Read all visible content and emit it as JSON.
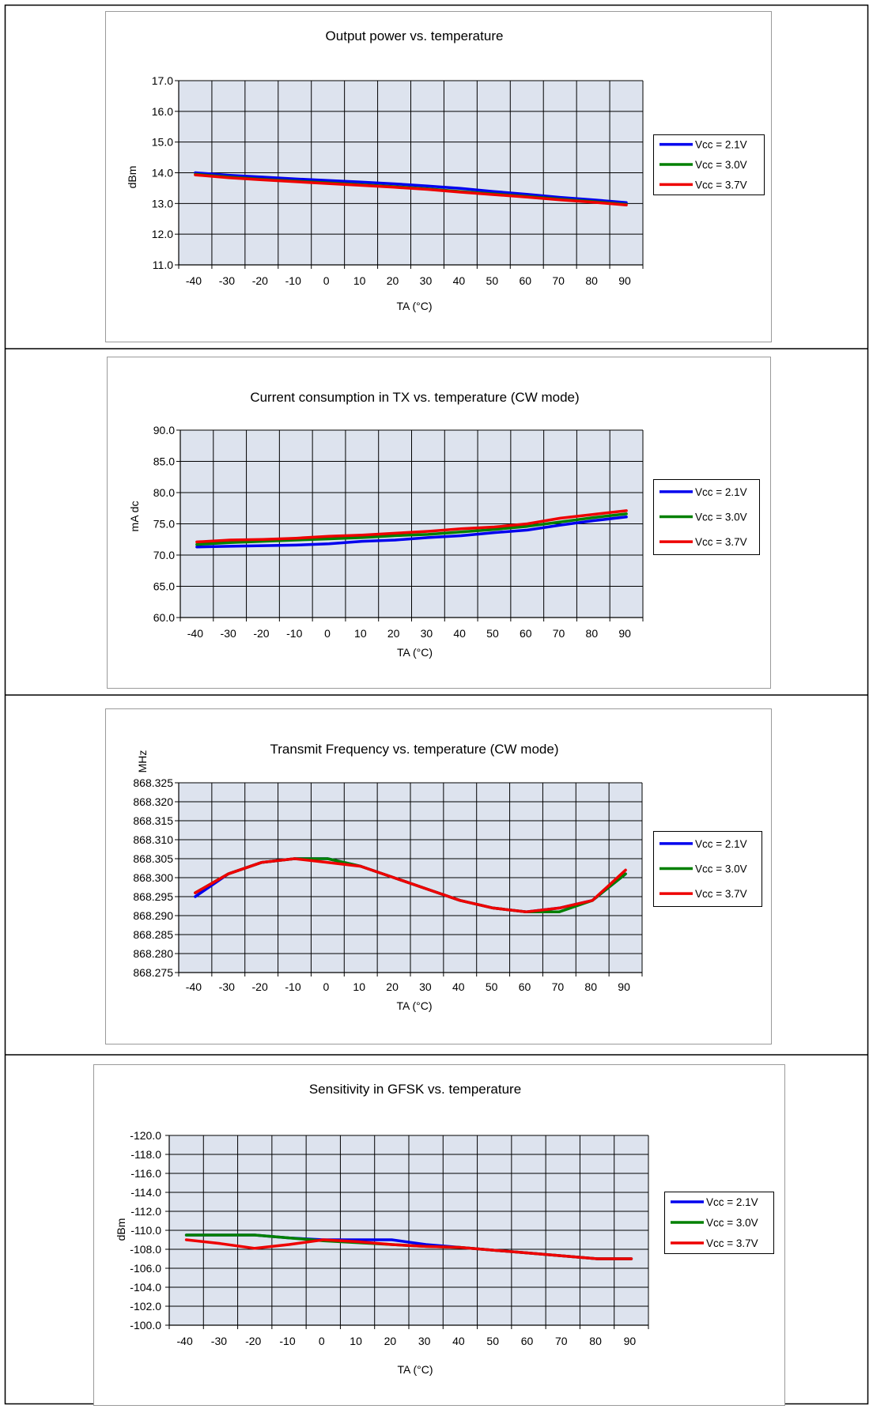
{
  "chart_data": [
    {
      "type": "line",
      "title": "Output power vs. temperature",
      "xlabel": "TA (°C)",
      "ylabel": "dBm",
      "xlim": [
        -40,
        90
      ],
      "ylim": [
        11.0,
        17.0
      ],
      "ytick_step": 1.0,
      "ytick_decimals": 1,
      "grid": true,
      "legend": "right",
      "x": [
        -40,
        -30,
        -20,
        -10,
        0,
        10,
        20,
        30,
        40,
        50,
        60,
        70,
        80,
        90
      ],
      "series": [
        {
          "name": "Vcc = 2.1V",
          "color": "#0000ee",
          "values": [
            14.0,
            13.92,
            13.86,
            13.8,
            13.75,
            13.7,
            13.64,
            13.57,
            13.49,
            13.39,
            13.3,
            13.2,
            13.12,
            13.03
          ]
        },
        {
          "name": "Vcc = 3.0V",
          "color": "#008000",
          "values": [
            13.95,
            13.86,
            13.79,
            13.73,
            13.67,
            13.61,
            13.55,
            13.48,
            13.39,
            13.31,
            13.23,
            13.14,
            13.06,
            12.97
          ]
        },
        {
          "name": "Vcc = 3.7V",
          "color": "#ee0000",
          "values": [
            13.93,
            13.84,
            13.77,
            13.71,
            13.65,
            13.59,
            13.53,
            13.46,
            13.37,
            13.29,
            13.21,
            13.12,
            13.04,
            12.95
          ]
        }
      ]
    },
    {
      "type": "line",
      "title": "Current consumption in TX vs. temperature (CW mode)",
      "xlabel": "TA (°C)",
      "ylabel": "mA dc",
      "xlim": [
        -40,
        90
      ],
      "ylim": [
        60.0,
        90.0
      ],
      "ytick_step": 5.0,
      "ytick_decimals": 1,
      "grid": true,
      "legend": "right",
      "x": [
        -40,
        -30,
        -20,
        -10,
        0,
        10,
        20,
        30,
        40,
        50,
        60,
        70,
        80,
        90
      ],
      "series": [
        {
          "name": "Vcc = 2.1V",
          "color": "#0000ee",
          "values": [
            71.3,
            71.4,
            71.5,
            71.6,
            71.8,
            72.2,
            72.4,
            72.8,
            73.1,
            73.6,
            74.0,
            74.8,
            75.5,
            76.1
          ]
        },
        {
          "name": "Vcc = 3.0V",
          "color": "#008000",
          "values": [
            71.7,
            72.0,
            72.2,
            72.4,
            72.6,
            72.8,
            73.1,
            73.3,
            73.7,
            74.1,
            74.6,
            75.3,
            76.0,
            76.6
          ]
        },
        {
          "name": "Vcc = 3.7V",
          "color": "#ee0000",
          "values": [
            72.1,
            72.4,
            72.5,
            72.7,
            73.0,
            73.2,
            73.5,
            73.8,
            74.2,
            74.5,
            75.0,
            75.9,
            76.5,
            77.1
          ]
        }
      ]
    },
    {
      "type": "line",
      "title": "Transmit Frequency  vs. temperature (CW mode)",
      "xlabel": "TA (°C)",
      "ylabel": "MHz",
      "xlim": [
        -40,
        90
      ],
      "ylim": [
        868.275,
        868.325
      ],
      "ytick_step": 0.005,
      "ytick_decimals": 3,
      "grid": true,
      "legend": "right",
      "x": [
        -40,
        -30,
        -20,
        -10,
        0,
        10,
        20,
        30,
        40,
        50,
        60,
        70,
        80,
        90
      ],
      "series": [
        {
          "name": "Vcc = 2.1V",
          "color": "#0000ee",
          "values": [
            868.295,
            868.301,
            868.304,
            868.305,
            868.305,
            868.303,
            868.3,
            868.297,
            868.294,
            868.292,
            868.291,
            868.292,
            868.294,
            868.301
          ]
        },
        {
          "name": "Vcc = 3.0V",
          "color": "#008000",
          "values": [
            868.296,
            868.301,
            868.304,
            868.305,
            868.305,
            868.303,
            868.3,
            868.297,
            868.294,
            868.292,
            868.291,
            868.291,
            868.294,
            868.301
          ]
        },
        {
          "name": "Vcc = 3.7V",
          "color": "#ee0000",
          "values": [
            868.296,
            868.301,
            868.304,
            868.305,
            868.304,
            868.303,
            868.3,
            868.297,
            868.294,
            868.292,
            868.291,
            868.292,
            868.294,
            868.302
          ]
        }
      ]
    },
    {
      "type": "line",
      "title": "Sensitivity in GFSK vs. temperature",
      "xlabel": "TA (°C)",
      "ylabel": "dBm",
      "xlim": [
        -40,
        90
      ],
      "ylim": [
        -100.0,
        -120.0
      ],
      "ytick_step": 2.0,
      "ytick_decimals": 1,
      "grid": true,
      "legend": "right",
      "x": [
        -40,
        -30,
        -20,
        -10,
        0,
        10,
        20,
        30,
        40,
        50,
        60,
        70,
        80,
        90
      ],
      "series": [
        {
          "name": "Vcc = 2.1V",
          "color": "#0000ee",
          "values": [
            -109.5,
            -109.5,
            -109.5,
            -109.2,
            -109.0,
            -109.0,
            -109.0,
            -108.5,
            -108.2,
            -107.9,
            -107.6,
            -107.3,
            -107.0,
            -107.0
          ]
        },
        {
          "name": "Vcc = 3.0V",
          "color": "#008000",
          "values": [
            -109.5,
            -109.5,
            -109.5,
            -109.2,
            -108.9,
            -108.7,
            -108.5,
            -108.3,
            -108.2,
            -107.9,
            -107.6,
            -107.3,
            -107.0,
            -107.0
          ]
        },
        {
          "name": "Vcc = 3.7V",
          "color": "#ee0000",
          "values": [
            -109.0,
            -108.6,
            -108.1,
            -108.5,
            -109.0,
            -108.8,
            -108.5,
            -108.3,
            -108.2,
            -107.9,
            -107.6,
            -107.3,
            -107.0,
            -107.0
          ]
        }
      ]
    }
  ]
}
